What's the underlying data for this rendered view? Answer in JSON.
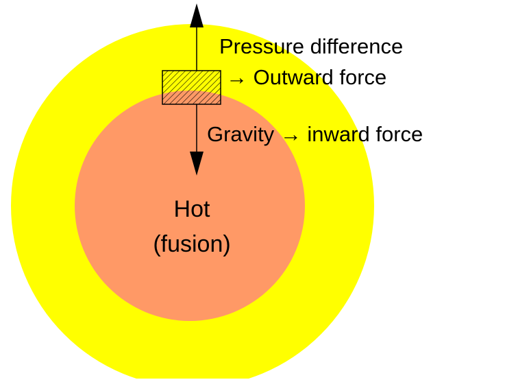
{
  "labels": {
    "pressure": "Pressure difference",
    "outward": "→ Outward force",
    "gravity": "Gravity → inward force",
    "core_line1": "Hot",
    "core_line2": "(fusion)"
  }
}
